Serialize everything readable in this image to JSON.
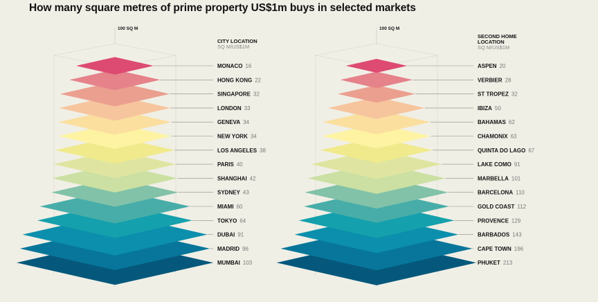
{
  "title": "How many square metres of prime property US$1m buys in selected markets",
  "chart_data": [
    {
      "type": "bar",
      "reference_label": "100 SQ M",
      "header_lines": [
        "CITY LOCATION"
      ],
      "subheader": "SQ M/US$1M",
      "categories": [
        "MONACO",
        "HONG KONG",
        "SINGAPORE",
        "LONDON",
        "GENEVA",
        "NEW YORK",
        "LOS ANGELES",
        "PARIS",
        "SHANGHAI",
        "SYDNEY",
        "MIAMI",
        "TOKYO",
        "DUBAI",
        "MADRID",
        "MUMBAI"
      ],
      "values": [
        16,
        22,
        32,
        33,
        34,
        34,
        38,
        40,
        42,
        43,
        60,
        64,
        91,
        96,
        103
      ]
    },
    {
      "type": "bar",
      "reference_label": "100 SQ M",
      "header_lines": [
        "SECOND HOME",
        "LOCATION"
      ],
      "subheader": "SQ M/US$1M",
      "categories": [
        "ASPEN",
        "VERBIER",
        "ST TROPEZ",
        "IBIZA",
        "BAHAMAS",
        "CHAMONIX",
        "QUINTA DO LAGO",
        "LAKE COMO",
        "MARBELLA",
        "BARCELONA",
        "GOLD COAST",
        "PROVENCE",
        "BARBADOS",
        "CAPE TOWN",
        "PHUKET"
      ],
      "values": [
        20,
        28,
        32,
        50,
        62,
        63,
        67,
        91,
        101,
        110,
        112,
        129,
        143,
        196,
        213
      ]
    }
  ],
  "colors": [
    "#dd4a72",
    "#e5828a",
    "#eb9f8f",
    "#f6c59e",
    "#fbdf9f",
    "#fdf3a2",
    "#f0ea8d",
    "#dfe5a1",
    "#cbe0a2",
    "#81c2a8",
    "#48ada8",
    "#14a0ac",
    "#0b8fad",
    "#07769a",
    "#05587c"
  ]
}
